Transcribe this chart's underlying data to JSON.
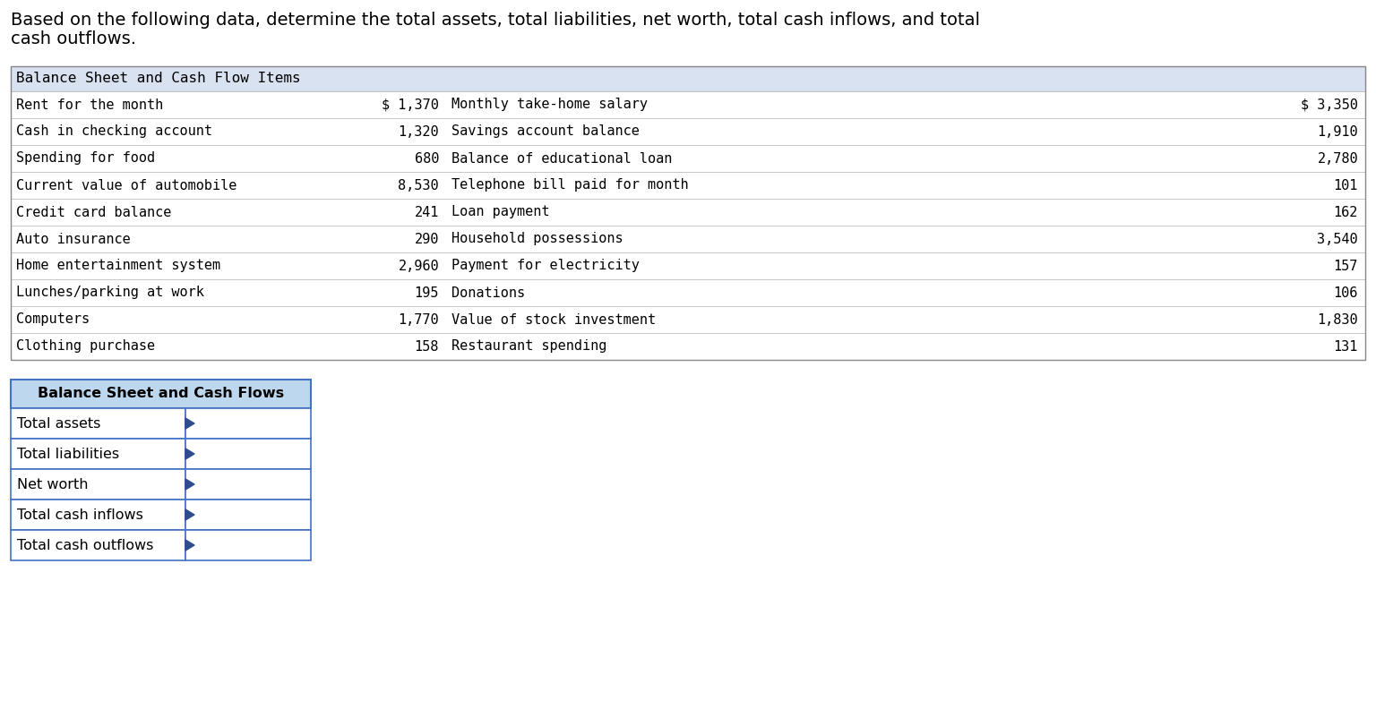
{
  "title_line1": "Based on the following data, determine the total assets, total liabilities, net worth, total cash inflows, and total",
  "title_line2": "cash outflows.",
  "main_table_header": "Balance Sheet and Cash Flow Items",
  "main_table_bg": "#d9e2f0",
  "main_table_rows": [
    [
      "Rent for the month",
      "$ 1,370",
      "Monthly take-home salary",
      "$ 3,350"
    ],
    [
      "Cash in checking account",
      "1,320",
      "Savings account balance",
      "1,910"
    ],
    [
      "Spending for food",
      "680",
      "Balance of educational loan",
      "2,780"
    ],
    [
      "Current value of automobile",
      "8,530",
      "Telephone bill paid for month",
      "101"
    ],
    [
      "Credit card balance",
      "241",
      "Loan payment",
      "162"
    ],
    [
      "Auto insurance",
      "290",
      "Household possessions",
      "3,540"
    ],
    [
      "Home entertainment system",
      "2,960",
      "Payment for electricity",
      "157"
    ],
    [
      "Lunches/parking at work",
      "195",
      "Donations",
      "106"
    ],
    [
      "Computers",
      "1,770",
      "Value of stock investment",
      "1,830"
    ],
    [
      "Clothing purchase",
      "158",
      "Restaurant spending",
      "131"
    ]
  ],
  "answer_table_header": "Balance Sheet and Cash Flows",
  "answer_table_rows": [
    "Total assets",
    "Total liabilities",
    "Net worth",
    "Total cash inflows",
    "Total cash outflows"
  ],
  "answer_header_bg": "#bdd7ee",
  "answer_border": "#4472c4",
  "arrow_color": "#2e4d8a",
  "mono_font": "DejaVu Sans Mono",
  "sans_font": "DejaVu Sans",
  "title_fontsize": 14.0,
  "main_header_fontsize": 11.5,
  "main_row_fontsize": 11.0,
  "answer_header_fontsize": 11.5,
  "answer_row_fontsize": 11.5,
  "fig_width": 15.36,
  "fig_height": 7.92,
  "dpi": 100
}
